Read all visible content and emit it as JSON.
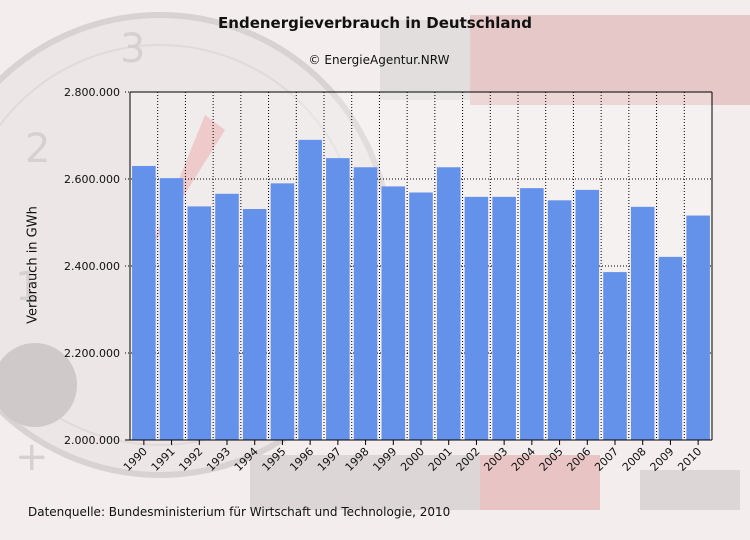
{
  "title": "Endenergieverbrauch in Deutschland",
  "subtitle": "© EnergieAgentur.NRW",
  "source": "Datenquelle: Bundesministerium für Wirtschaft und Technologie, 2010",
  "colors": {
    "bar": "#6492ea",
    "grid": "#000000",
    "background": "#f2ecec"
  },
  "chart_data": {
    "type": "bar",
    "title": "Endenergieverbrauch in Deutschland",
    "xlabel": "",
    "ylabel": "Verbrauch in GWh",
    "ylim": [
      2000000,
      2800000
    ],
    "yticks": [
      "2.000.000",
      "2.200.000",
      "2.400.000",
      "2.600.000",
      "2.800.000"
    ],
    "ytick_values": [
      2000000,
      2200000,
      2400000,
      2600000,
      2800000
    ],
    "grid": true,
    "categories": [
      "1990",
      "1991",
      "1992",
      "1993",
      "1994",
      "1995",
      "1996",
      "1997",
      "1998",
      "1999",
      "2000",
      "2001",
      "2002",
      "2003",
      "2004",
      "2005",
      "2006",
      "2007",
      "2008",
      "2009",
      "2010"
    ],
    "values": [
      2630000,
      2602000,
      2537000,
      2566000,
      2531000,
      2590000,
      2690000,
      2648000,
      2627000,
      2583000,
      2569000,
      2627000,
      2559000,
      2559000,
      2579000,
      2551000,
      2575000,
      2386000,
      2536000,
      2421000,
      2516000
    ]
  }
}
